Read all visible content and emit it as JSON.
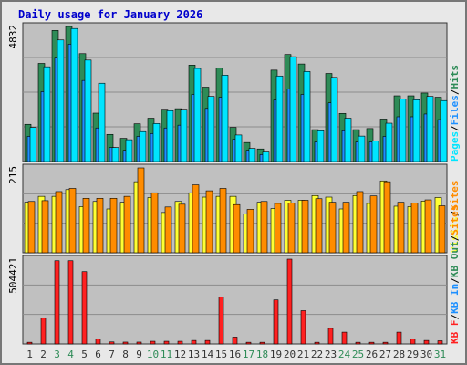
{
  "title": "Daily usage for January 2026",
  "colors": {
    "frame_bg": "#e8e8e8",
    "plot_bg": "#c0c0c0",
    "grid": "#8c8c8c",
    "weekday_label": "#333333",
    "weekend_label": "#2e8b57",
    "hits": "#2e8b57",
    "files": "#1e90ff",
    "pages": "#00e5ff",
    "visits": "#ffff33",
    "sites": "#ff8c00",
    "kb_in": "#1e90ff",
    "kb_out": "#2e8b57",
    "kb_f": "#ff2020"
  },
  "chart_data": [
    {
      "type": "bar",
      "panel": "hits-files-pages",
      "ymax_label": "4832",
      "ylim": [
        0,
        4832
      ],
      "grid": true,
      "legend": [
        "Pages",
        "/",
        "Files",
        "/",
        "Hits"
      ],
      "categories": [
        "1",
        "2",
        "3",
        "4",
        "5",
        "6",
        "7",
        "8",
        "9",
        "10",
        "11",
        "12",
        "13",
        "14",
        "15",
        "16",
        "17",
        "18",
        "19",
        "20",
        "21",
        "22",
        "23",
        "24",
        "25",
        "26",
        "27",
        "28",
        "29",
        "30",
        "31"
      ],
      "weekend_days": [
        "3",
        "4",
        "10",
        "11",
        "17",
        "18",
        "24",
        "25",
        "31"
      ],
      "series": [
        {
          "name": "Hits",
          "values": [
            1330,
            3510,
            4690,
            4832,
            3860,
            1730,
            970,
            830,
            1350,
            1550,
            1870,
            1890,
            3450,
            2660,
            3350,
            1220,
            680,
            450,
            3270,
            3830,
            3490,
            1140,
            3150,
            1720,
            1140,
            1180,
            1520,
            2350,
            2350,
            2450,
            2300
          ]
        },
        {
          "name": "Files",
          "values": [
            900,
            2500,
            3700,
            4200,
            2900,
            1200,
            500,
            400,
            900,
            1000,
            1200,
            1300,
            2400,
            1900,
            2300,
            800,
            400,
            250,
            2200,
            2600,
            2400,
            700,
            2100,
            1100,
            700,
            700,
            900,
            1600,
            1600,
            1700,
            1500
          ]
        },
        {
          "name": "Pages",
          "values": [
            1220,
            3390,
            4350,
            4760,
            3630,
            2800,
            500,
            780,
            1070,
            1360,
            1820,
            1870,
            3330,
            2330,
            3090,
            950,
            470,
            340,
            3060,
            3750,
            3220,
            1100,
            3010,
            1550,
            910,
            740,
            1370,
            2230,
            2210,
            2330,
            2180
          ]
        }
      ]
    },
    {
      "type": "bar",
      "panel": "visits-sites",
      "ymax_label": "215",
      "ylim": [
        0,
        215
      ],
      "grid": true,
      "legend": [
        "Visits",
        "/",
        "Sites"
      ],
      "categories": [
        "1",
        "2",
        "3",
        "4",
        "5",
        "6",
        "7",
        "8",
        "9",
        "10",
        "11",
        "12",
        "13",
        "14",
        "15",
        "16",
        "17",
        "18",
        "19",
        "20",
        "21",
        "22",
        "23",
        "24",
        "25",
        "26",
        "27",
        "28",
        "29",
        "30",
        "31"
      ],
      "series": [
        {
          "name": "Visits",
          "values": [
            128,
            143,
            143,
            160,
            117,
            130,
            111,
            128,
            180,
            140,
            102,
            130,
            152,
            141,
            143,
            143,
            98,
            128,
            112,
            133,
            133,
            145,
            141,
            111,
            145,
            125,
            182,
            118,
            117,
            131,
            140
          ]
        },
        {
          "name": "Sites",
          "values": [
            130,
            132,
            155,
            163,
            138,
            138,
            138,
            143,
            215,
            152,
            116,
            123,
            172,
            157,
            163,
            122,
            110,
            130,
            125,
            126,
            133,
            137,
            128,
            128,
            155,
            144,
            180,
            128,
            126,
            134,
            119
          ]
        }
      ]
    },
    {
      "type": "bar",
      "panel": "kbytes",
      "ymax_label": "504421",
      "ylim": [
        0,
        504421
      ],
      "grid": true,
      "legend": [
        "KB F",
        "/",
        "KB In",
        "/",
        "KB Out",
        "/",
        "Sites"
      ],
      "categories": [
        "1",
        "2",
        "3",
        "4",
        "5",
        "6",
        "7",
        "8",
        "9",
        "10",
        "11",
        "12",
        "13",
        "14",
        "15",
        "16",
        "17",
        "18",
        "19",
        "20",
        "21",
        "22",
        "23",
        "24",
        "25",
        "26",
        "27",
        "28",
        "29",
        "30",
        "31"
      ],
      "series": [
        {
          "name": "KB F",
          "values": [
            10000,
            155000,
            495000,
            495000,
            430000,
            30000,
            12000,
            11000,
            11000,
            16000,
            16000,
            16000,
            21000,
            21000,
            280000,
            41000,
            10000,
            10000,
            262000,
            504421,
            198000,
            10000,
            93000,
            70000,
            10000,
            10000,
            10000,
            70000,
            30000,
            21000,
            19000
          ]
        }
      ]
    }
  ]
}
